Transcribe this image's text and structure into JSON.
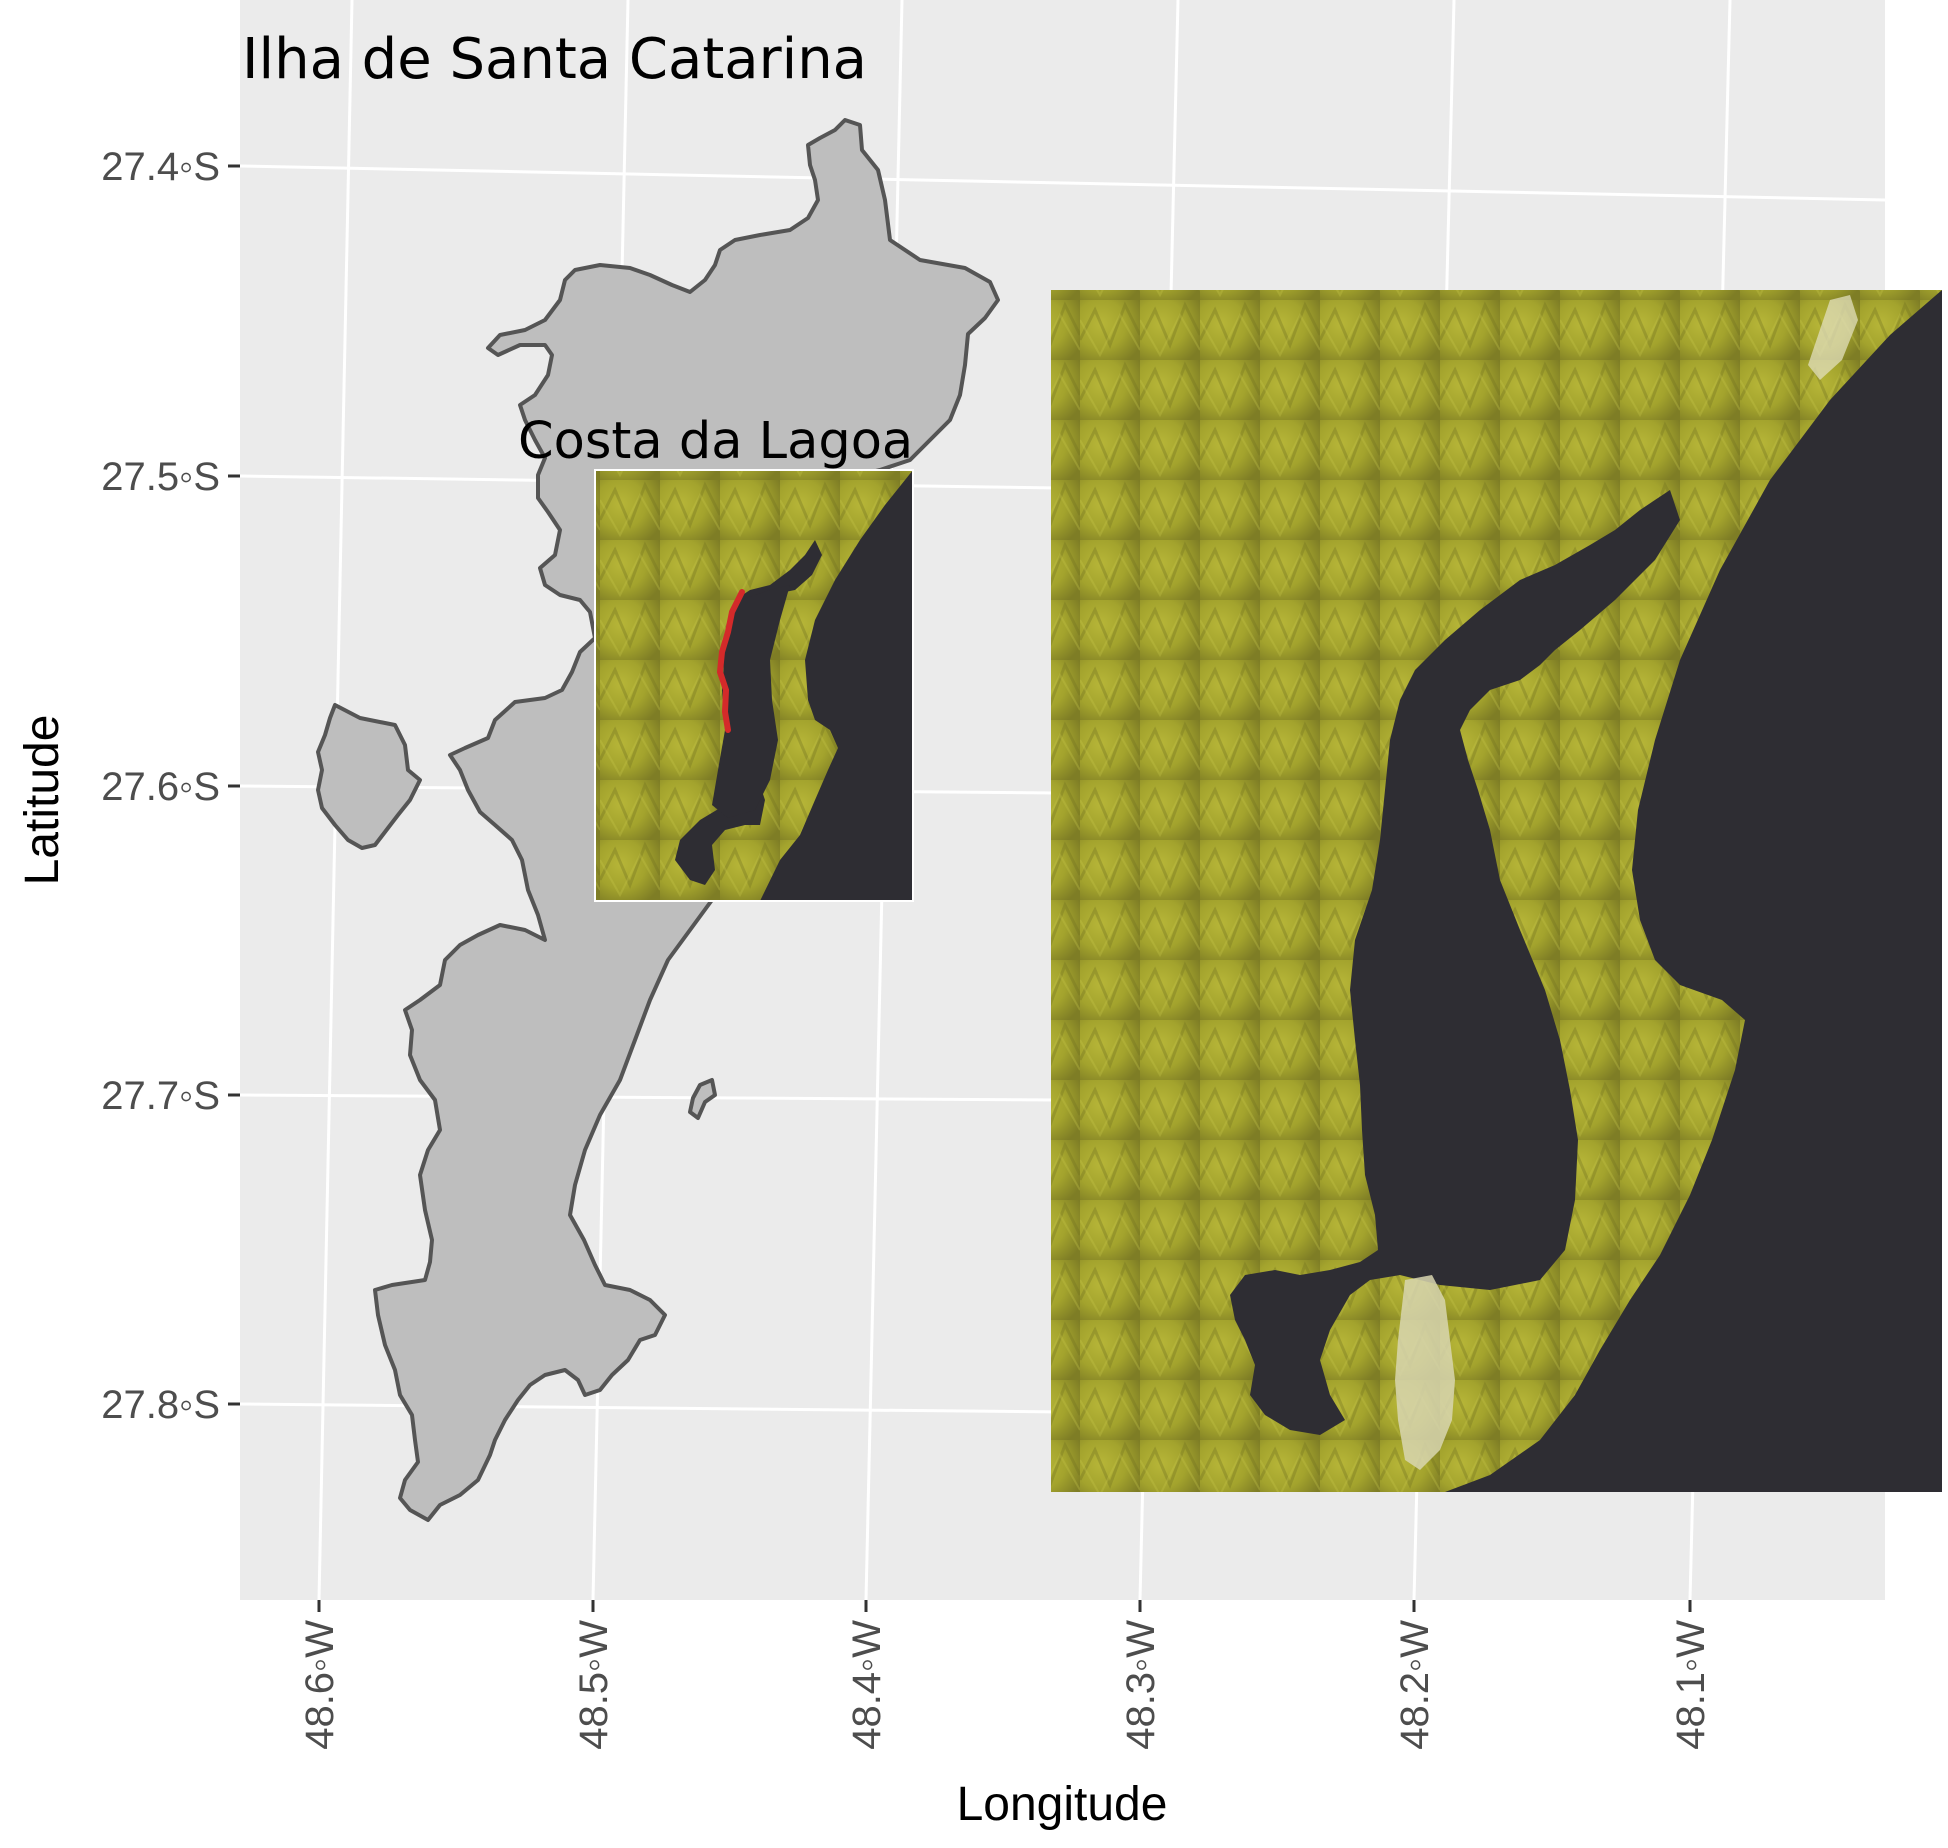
{
  "title": "Ilha de Santa Catarina",
  "inset_title": "Costa da Lagoa",
  "x_axis": {
    "title": "Longitude",
    "ticks": [
      "48.6◦W",
      "48.5◦W",
      "48.4◦W",
      "48.3◦W",
      "48.2◦W",
      "48.1◦W"
    ]
  },
  "y_axis": {
    "title": "Latitude",
    "ticks": [
      "27.4◦S",
      "27.5◦S",
      "27.6◦S",
      "27.7◦S",
      "27.8◦S"
    ]
  },
  "colors": {
    "panel_background": "#ebebeb",
    "grid": "#ffffff",
    "island_fill": "#bebebe",
    "island_outline": "#555555",
    "satellite_vegetation": "#9f9f2a",
    "satellite_water": "#2e2d33",
    "highlight": "#d42a2a"
  },
  "icons": {
    "map_layer": "island-outline-polygon",
    "imagery": "satellite-imagery-tile"
  }
}
